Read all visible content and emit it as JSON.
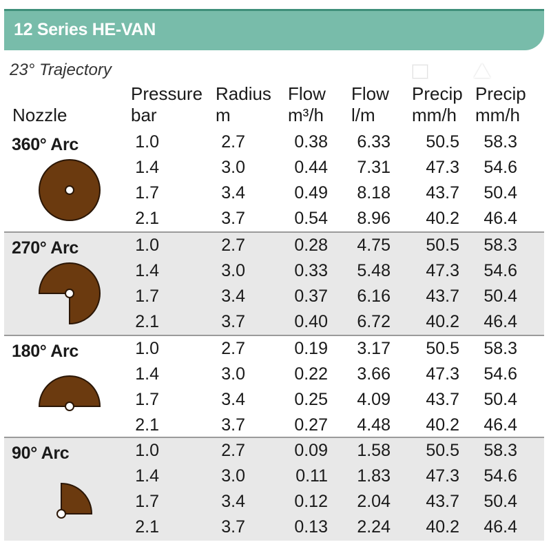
{
  "title": "12 Series HE-VAN",
  "trajectory": "23° Trajectory",
  "headers": {
    "nozzle": "Nozzle",
    "pressure": [
      "Pressure",
      "bar"
    ],
    "radius": [
      "Radius",
      "m"
    ],
    "flow_m3h": [
      "Flow",
      "m³/h"
    ],
    "flow_lm": [
      "Flow",
      "l/m"
    ],
    "precip_square": [
      "Precip",
      "mm/h"
    ],
    "precip_triangle": [
      "Precip",
      "mm/h"
    ]
  },
  "icons": {
    "square": "square-symbol-icon",
    "triangle": "triangle-symbol-icon"
  },
  "colors": {
    "banner": "#78bcaa",
    "nozzle_fill": "#6b3a0f",
    "shade": "#e8e8e8"
  },
  "groups": [
    {
      "label": "360° Arc",
      "arc": 360,
      "rows": [
        [
          "1.0",
          "2.7",
          "0.38",
          "6.33",
          "50.5",
          "58.3"
        ],
        [
          "1.4",
          "3.0",
          "0.44",
          "7.31",
          "47.3",
          "54.6"
        ],
        [
          "1.7",
          "3.4",
          "0.49",
          "8.18",
          "43.7",
          "50.4"
        ],
        [
          "2.1",
          "3.7",
          "0.54",
          "8.96",
          "40.2",
          "46.4"
        ]
      ]
    },
    {
      "label": "270° Arc",
      "arc": 270,
      "rows": [
        [
          "1.0",
          "2.7",
          "0.28",
          "4.75",
          "50.5",
          "58.3"
        ],
        [
          "1.4",
          "3.0",
          "0.33",
          "5.48",
          "47.3",
          "54.6"
        ],
        [
          "1.7",
          "3.4",
          "0.37",
          "6.16",
          "43.7",
          "50.4"
        ],
        [
          "2.1",
          "3.7",
          "0.40",
          "6.72",
          "40.2",
          "46.4"
        ]
      ]
    },
    {
      "label": "180° Arc",
      "arc": 180,
      "rows": [
        [
          "1.0",
          "2.7",
          "0.19",
          "3.17",
          "50.5",
          "58.3"
        ],
        [
          "1.4",
          "3.0",
          "0.22",
          "3.66",
          "47.3",
          "54.6"
        ],
        [
          "1.7",
          "3.4",
          "0.25",
          "4.09",
          "43.7",
          "50.4"
        ],
        [
          "2.1",
          "3.7",
          "0.27",
          "4.48",
          "40.2",
          "46.4"
        ]
      ]
    },
    {
      "label": "90° Arc",
      "arc": 90,
      "rows": [
        [
          "1.0",
          "2.7",
          "0.09",
          "1.58",
          "50.5",
          "58.3"
        ],
        [
          "1.4",
          "3.0",
          "0.11",
          "1.83",
          "47.3",
          "54.6"
        ],
        [
          "1.7",
          "3.4",
          "0.12",
          "2.04",
          "43.7",
          "50.4"
        ],
        [
          "2.1",
          "3.7",
          "0.13",
          "2.24",
          "40.2",
          "46.4"
        ]
      ]
    }
  ]
}
